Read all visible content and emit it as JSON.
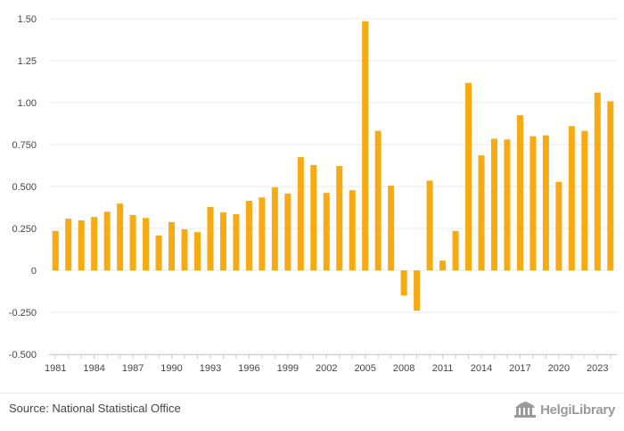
{
  "chart_data": {
    "type": "bar",
    "title": "",
    "xlabel": "",
    "ylabel": "",
    "ylim": [
      -0.5,
      1.5
    ],
    "yticks": [
      -0.5,
      -0.25,
      0,
      0.25,
      0.5,
      0.75,
      1.0,
      1.25,
      1.5
    ],
    "ytick_labels": [
      "-0.500",
      "-0.250",
      "0",
      "0.250",
      "0.500",
      "0.750",
      "1.00",
      "1.25",
      "1.50"
    ],
    "xtick_labels": [
      "1981",
      "1984",
      "1987",
      "1990",
      "1993",
      "1996",
      "1999",
      "2002",
      "2005",
      "2008",
      "2011",
      "2014",
      "2017",
      "2020",
      "2023"
    ],
    "grid": true,
    "bar_color": "#F7AA11",
    "categories": [
      "1981",
      "1982",
      "1983",
      "1984",
      "1985",
      "1986",
      "1987",
      "1988",
      "1989",
      "1990",
      "1991",
      "1992",
      "1993",
      "1994",
      "1995",
      "1996",
      "1997",
      "1998",
      "1999",
      "2000",
      "2001",
      "2002",
      "2003",
      "2004",
      "2005",
      "2006",
      "2007",
      "2008",
      "2009",
      "2010",
      "2011",
      "2012",
      "2013",
      "2014",
      "2015",
      "2016",
      "2017",
      "2018",
      "2019",
      "2020",
      "2021",
      "2022",
      "2023",
      "2024"
    ],
    "values": [
      0.235,
      0.308,
      0.298,
      0.318,
      0.35,
      0.398,
      0.33,
      0.312,
      0.208,
      0.288,
      0.245,
      0.228,
      0.378,
      0.345,
      0.335,
      0.415,
      0.435,
      0.495,
      0.458,
      0.675,
      0.628,
      0.462,
      0.622,
      0.478,
      1.485,
      0.832,
      0.505,
      -0.15,
      -0.24,
      0.535,
      0.058,
      0.235,
      1.118,
      0.685,
      0.785,
      0.78,
      0.925,
      0.8,
      0.805,
      0.528,
      0.86,
      0.832,
      1.06,
      1.008
    ]
  },
  "footer": {
    "source": "Source: National Statistical Office",
    "brand": "HelgiLibrary",
    "brand_icon": "library-building-icon"
  }
}
